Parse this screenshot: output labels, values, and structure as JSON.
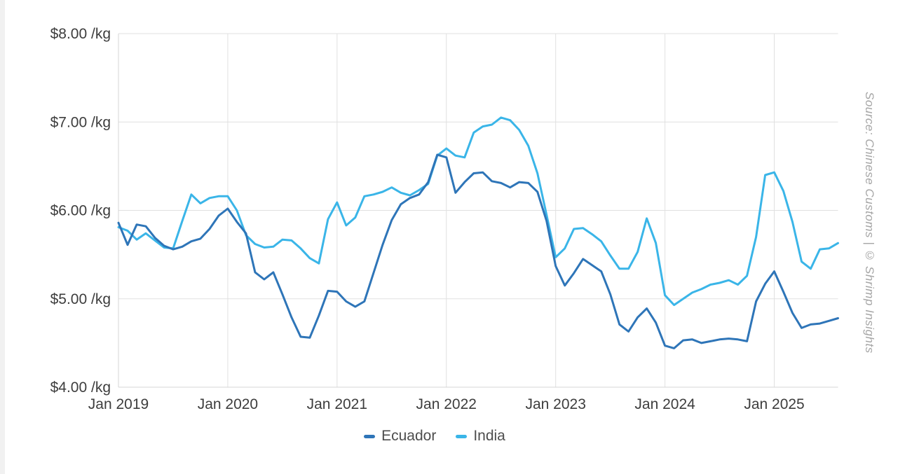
{
  "chart_data": {
    "type": "line",
    "title": "",
    "xlabel": "",
    "ylabel": "$/kg",
    "frequency": "monthly",
    "x_range": [
      "Jan 2019",
      "Aug 2025"
    ],
    "ylim": [
      4,
      8
    ],
    "grid": true,
    "legend_position": "bottom",
    "y_ticks": [
      {
        "value": 8,
        "label": "$8.00 /kg"
      },
      {
        "value": 7,
        "label": "$7.00 /kg"
      },
      {
        "value": 6,
        "label": "$6.00 /kg"
      },
      {
        "value": 5,
        "label": "$5.00 /kg"
      },
      {
        "value": 4,
        "label": "$4.00 /kg"
      }
    ],
    "x_ticks": [
      {
        "month_index": 0,
        "label": "Jan 2019"
      },
      {
        "month_index": 12,
        "label": "Jan 2020"
      },
      {
        "month_index": 24,
        "label": "Jan 2021"
      },
      {
        "month_index": 36,
        "label": "Jan 2022"
      },
      {
        "month_index": 48,
        "label": "Jan 2023"
      },
      {
        "month_index": 60,
        "label": "Jan 2024"
      },
      {
        "month_index": 72,
        "label": "Jan 2025"
      }
    ],
    "series": [
      {
        "name": "Ecuador",
        "color": "#2e75b8",
        "values": [
          5.86,
          5.61,
          5.84,
          5.82,
          5.69,
          5.6,
          5.56,
          5.59,
          5.65,
          5.68,
          5.79,
          5.94,
          6.02,
          5.87,
          5.74,
          5.3,
          5.22,
          5.3,
          5.05,
          4.79,
          4.57,
          4.56,
          4.81,
          5.09,
          5.08,
          4.97,
          4.91,
          4.97,
          5.29,
          5.61,
          5.89,
          6.07,
          6.14,
          6.18,
          6.32,
          6.63,
          6.6,
          6.2,
          6.32,
          6.42,
          6.43,
          6.33,
          6.31,
          6.26,
          6.32,
          6.31,
          6.21,
          5.88,
          5.37,
          5.15,
          5.29,
          5.45,
          5.38,
          5.31,
          5.05,
          4.71,
          4.63,
          4.79,
          4.89,
          4.73,
          4.47,
          4.44,
          4.53,
          4.54,
          4.5,
          4.52,
          4.54,
          4.55,
          4.54,
          4.52,
          4.97,
          5.17,
          5.31,
          5.08,
          4.84,
          4.67,
          4.71,
          4.72,
          4.75,
          4.78
        ]
      },
      {
        "name": "India",
        "color": "#3ab5e8",
        "values": [
          5.81,
          5.77,
          5.67,
          5.74,
          5.66,
          5.58,
          5.57,
          5.88,
          6.18,
          6.08,
          6.14,
          6.16,
          6.16,
          6.0,
          5.72,
          5.62,
          5.58,
          5.59,
          5.67,
          5.66,
          5.57,
          5.46,
          5.4,
          5.9,
          6.09,
          5.83,
          5.92,
          6.16,
          6.18,
          6.21,
          6.26,
          6.2,
          6.17,
          6.23,
          6.3,
          6.62,
          6.7,
          6.62,
          6.6,
          6.88,
          6.95,
          6.97,
          7.05,
          7.02,
          6.91,
          6.73,
          6.42,
          5.95,
          5.47,
          5.57,
          5.79,
          5.8,
          5.73,
          5.65,
          5.49,
          5.34,
          5.34,
          5.53,
          5.91,
          5.63,
          5.04,
          4.93,
          5.0,
          5.07,
          5.11,
          5.16,
          5.18,
          5.21,
          5.16,
          5.26,
          5.7,
          6.4,
          6.43,
          6.22,
          5.87,
          5.42,
          5.34,
          5.56,
          5.57,
          5.63
        ]
      }
    ]
  },
  "colors": {
    "grid_line": "#e0e0e0",
    "axis_line": "#d4d4d4",
    "tick_label": "#3d3d3d",
    "legend_text": "#4d4d4d",
    "source_text": "#a6a6a6"
  },
  "source_note": "Source: Chinese Customs | © Shrimp Insights"
}
